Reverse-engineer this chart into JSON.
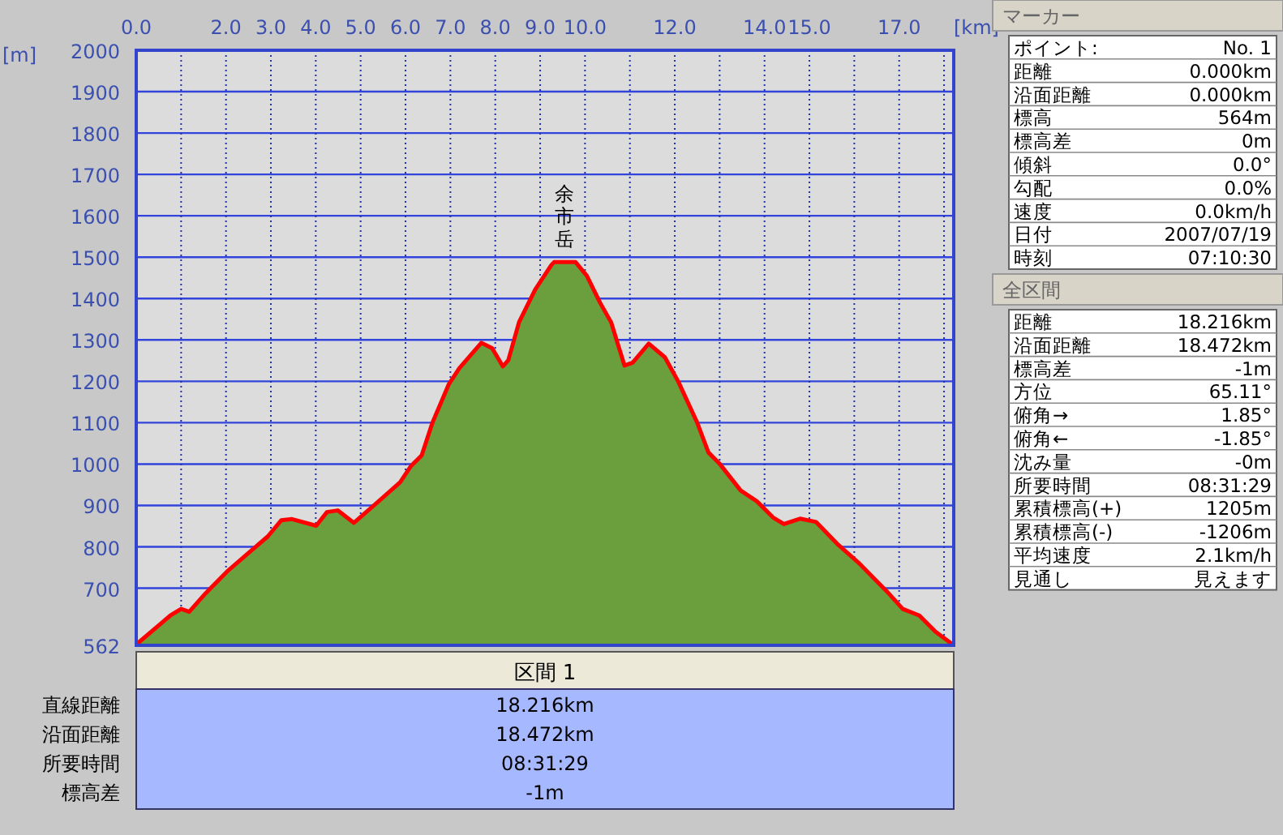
{
  "chart_data": [
    {
      "type": "area",
      "xlabel": "[km]",
      "ylabel": "[m]",
      "grid": true,
      "x": [
        0,
        0.76,
        1.0,
        1.18,
        1.54,
        2.02,
        2.5,
        2.93,
        3.23,
        3.47,
        4.01,
        4.25,
        4.49,
        4.85,
        5.4,
        5.88,
        6.12,
        6.36,
        6.6,
        6.78,
        6.96,
        7.2,
        7.69,
        7.93,
        8.17,
        8.29,
        8.53,
        8.89,
        9.25,
        9.31,
        9.79,
        10.04,
        10.34,
        10.58,
        10.88,
        11.06,
        11.42,
        11.78,
        12.08,
        12.5,
        12.75,
        12.99,
        13.47,
        13.83,
        14.19,
        14.43,
        14.79,
        15.15,
        15.64,
        16.12,
        16.72,
        17.08,
        17.45,
        17.81,
        18.17,
        18.216
      ],
      "series": [
        {
          "color": "#6b9e3c",
          "values": [
            564,
            634,
            650,
            643,
            687,
            740,
            785,
            825,
            864,
            867,
            851,
            884,
            888,
            858,
            910,
            956,
            995,
            1021,
            1100,
            1146,
            1192,
            1232,
            1293,
            1280,
            1236,
            1251,
            1343,
            1422,
            1481,
            1488,
            1488,
            1455,
            1389,
            1343,
            1238,
            1245,
            1291,
            1258,
            1199,
            1100,
            1028,
            1002,
            936,
            910,
            871,
            855,
            868,
            860,
            805,
            759,
            693,
            650,
            634,
            595,
            566,
            563
          ]
        }
      ],
      "xlim": [
        0,
        18.216
      ],
      "ylim": [
        562,
        2000
      ],
      "xticks": [
        {
          "value": 0,
          "label": "0.0"
        },
        {
          "value": 1,
          "label": null
        },
        {
          "value": 2,
          "label": "2.0"
        },
        {
          "value": 3,
          "label": "3.0"
        },
        {
          "value": 4,
          "label": "4.0"
        },
        {
          "value": 5,
          "label": "5.0"
        },
        {
          "value": 6,
          "label": "6.0"
        },
        {
          "value": 7,
          "label": "7.0"
        },
        {
          "value": 8,
          "label": "8.0"
        },
        {
          "value": 9,
          "label": "9.0"
        },
        {
          "value": 10,
          "label": "10.0"
        },
        {
          "value": 11,
          "label": null
        },
        {
          "value": 12,
          "label": "12.0"
        },
        {
          "value": 13,
          "label": null
        },
        {
          "value": 14,
          "label": "14.0"
        },
        {
          "value": 15,
          "label": "15.0"
        },
        {
          "value": 16,
          "label": null
        },
        {
          "value": 17,
          "label": "17.0"
        },
        {
          "value": 18,
          "label": null
        }
      ],
      "yticks": [
        562,
        700,
        800,
        900,
        1000,
        1100,
        1200,
        1300,
        1400,
        1500,
        1600,
        1700,
        1800,
        1900,
        2000
      ],
      "annotations": [
        {
          "text": "余市岳",
          "x": 9.55,
          "y": 1488
        }
      ]
    },
    {
      "type": "other",
      "title": "区間 1",
      "annotations": [
        "直線距離",
        "18.216km",
        "沿面距離",
        "18.472km",
        "所要時間",
        "08:31:29",
        "標高差",
        "-1m"
      ]
    },
    {
      "type": "other",
      "title": "マーカー",
      "annotations": [
        "ポイント:",
        "No. 1",
        "距離",
        "0.000km",
        "沿面距離",
        "0.000km",
        "標高",
        "564m",
        "標高差",
        "0m",
        "傾斜",
        "0.0°",
        "勾配",
        "0.0%",
        "速度",
        "0.0km/h",
        "日付",
        "2007/07/19",
        "時刻",
        "07:10:30"
      ]
    },
    {
      "type": "other",
      "title": "全区間",
      "annotations": [
        "距離",
        "18.216km",
        "沿面距離",
        "18.472km",
        "標高差",
        "-1m",
        "方位",
        "65.11°",
        "俯角→",
        "1.85°",
        "俯角←",
        "-1.85°",
        "沈み量",
        "-0m",
        "所要時間",
        "08:31:29",
        "累積標高(+)",
        "1205m",
        "累積標高(-)",
        "-1206m",
        "平均速度",
        "2.1km/h",
        "見通し",
        "見えます"
      ]
    }
  ]
}
